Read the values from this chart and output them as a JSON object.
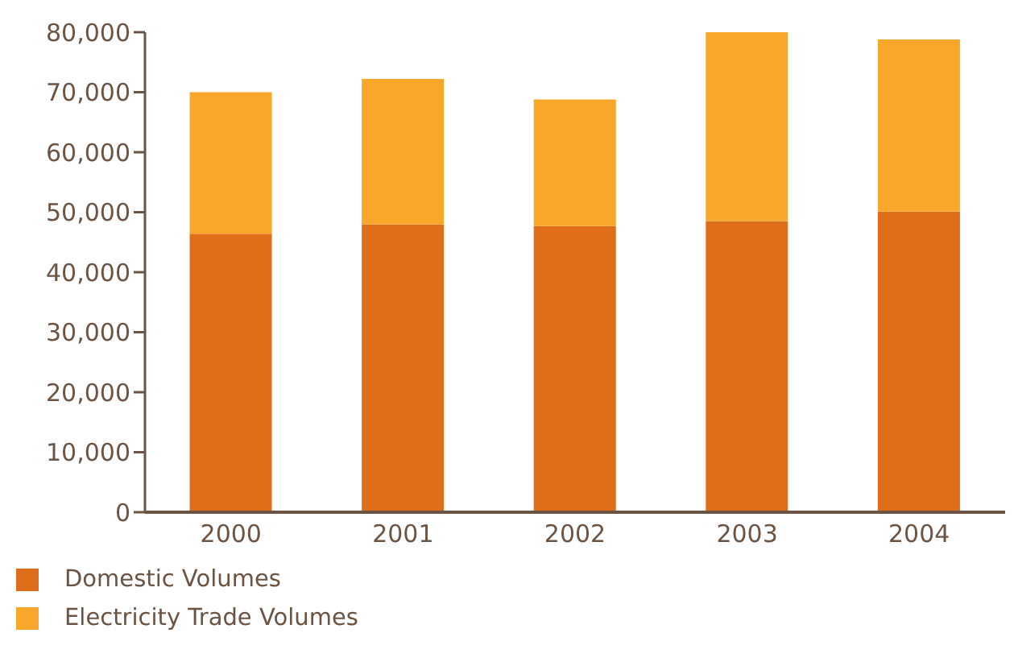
{
  "chart_data": {
    "type": "bar",
    "stacked": true,
    "categories": [
      "2000",
      "2001",
      "2002",
      "2003",
      "2004"
    ],
    "series": [
      {
        "name": "Domestic Volumes",
        "color": "#df6e1b",
        "values": [
          46400,
          48000,
          47700,
          48500,
          50100
        ]
      },
      {
        "name": "Electricity Trade Volumes",
        "color": "#f9a72b",
        "values": [
          23600,
          24200,
          21100,
          31500,
          28700
        ]
      }
    ],
    "ylim": [
      0,
      80000
    ],
    "yticks": [
      0,
      {
        "value": 10000,
        "label": "10,000"
      },
      {
        "value": 20000,
        "label": "20,000"
      },
      {
        "value": 30000,
        "label": "30,000"
      },
      {
        "value": 40000,
        "label": "40,000"
      },
      {
        "value": 50000,
        "label": "50,000"
      },
      {
        "value": 60000,
        "label": "60,000"
      },
      {
        "value": 70000,
        "label": "70,000"
      },
      {
        "value": 80000,
        "label": "80,000"
      }
    ],
    "grid": false,
    "legend": "bottom left"
  }
}
